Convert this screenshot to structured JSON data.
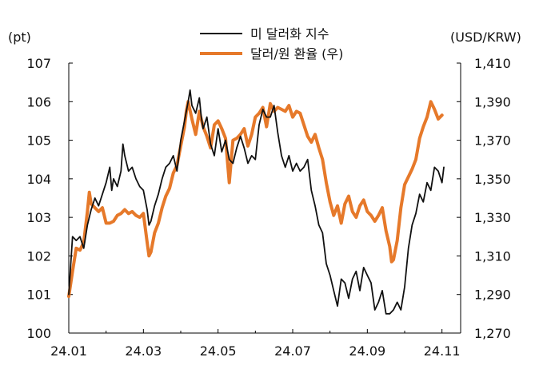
{
  "chart_data": {
    "type": "line",
    "y_left_unit": "(pt)",
    "y_right_unit": "(USD/KRW)",
    "y_left_ticks": [
      "107",
      "106",
      "105",
      "104",
      "103",
      "102",
      "101",
      "100"
    ],
    "y_right_ticks": [
      "1,410",
      "1,390",
      "1,370",
      "1,350",
      "1,330",
      "1,310",
      "1,290",
      "1,270"
    ],
    "x_ticks": [
      "24.01",
      "24.03",
      "24.05",
      "24.07",
      "24.09",
      "24.11"
    ],
    "ylim_left": [
      100,
      107
    ],
    "ylim_right": [
      1270,
      1410
    ],
    "legend_position": "top",
    "series": [
      {
        "name": "미 달러화 지수",
        "axis": "left",
        "color": "#111111",
        "points": [
          [
            0.0,
            101.0
          ],
          [
            0.1,
            102.5
          ],
          [
            0.2,
            102.4
          ],
          [
            0.3,
            102.5
          ],
          [
            0.4,
            102.2
          ],
          [
            0.5,
            102.8
          ],
          [
            0.6,
            103.2
          ],
          [
            0.7,
            103.5
          ],
          [
            0.8,
            103.3
          ],
          [
            0.9,
            103.6
          ],
          [
            1.0,
            103.9
          ],
          [
            1.1,
            104.3
          ],
          [
            1.15,
            103.7
          ],
          [
            1.2,
            104.0
          ],
          [
            1.3,
            103.8
          ],
          [
            1.4,
            104.2
          ],
          [
            1.45,
            104.9
          ],
          [
            1.5,
            104.6
          ],
          [
            1.6,
            104.2
          ],
          [
            1.7,
            104.3
          ],
          [
            1.8,
            104.0
          ],
          [
            1.9,
            103.8
          ],
          [
            2.0,
            103.7
          ],
          [
            2.1,
            103.2
          ],
          [
            2.15,
            102.8
          ],
          [
            2.2,
            102.9
          ],
          [
            2.3,
            103.3
          ],
          [
            2.4,
            103.6
          ],
          [
            2.5,
            104.0
          ],
          [
            2.6,
            104.3
          ],
          [
            2.7,
            104.4
          ],
          [
            2.8,
            104.6
          ],
          [
            2.9,
            104.2
          ],
          [
            3.0,
            105.0
          ],
          [
            3.1,
            105.5
          ],
          [
            3.2,
            106.0
          ],
          [
            3.25,
            106.3
          ],
          [
            3.3,
            105.9
          ],
          [
            3.4,
            105.7
          ],
          [
            3.5,
            106.1
          ],
          [
            3.55,
            105.6
          ],
          [
            3.6,
            105.3
          ],
          [
            3.7,
            105.6
          ],
          [
            3.8,
            104.9
          ],
          [
            3.9,
            104.6
          ],
          [
            4.0,
            105.3
          ],
          [
            4.1,
            104.7
          ],
          [
            4.2,
            105.0
          ],
          [
            4.3,
            104.5
          ],
          [
            4.4,
            104.4
          ],
          [
            4.5,
            104.8
          ],
          [
            4.6,
            105.1
          ],
          [
            4.7,
            104.8
          ],
          [
            4.8,
            104.4
          ],
          [
            4.9,
            104.6
          ],
          [
            5.0,
            104.5
          ],
          [
            5.1,
            105.4
          ],
          [
            5.2,
            105.8
          ],
          [
            5.3,
            105.6
          ],
          [
            5.4,
            105.6
          ],
          [
            5.5,
            105.9
          ],
          [
            5.6,
            105.2
          ],
          [
            5.7,
            104.6
          ],
          [
            5.8,
            104.3
          ],
          [
            5.9,
            104.6
          ],
          [
            6.0,
            104.2
          ],
          [
            6.1,
            104.4
          ],
          [
            6.2,
            104.2
          ],
          [
            6.3,
            104.3
          ],
          [
            6.4,
            104.5
          ],
          [
            6.5,
            103.7
          ],
          [
            6.6,
            103.3
          ],
          [
            6.7,
            102.8
          ],
          [
            6.8,
            102.6
          ],
          [
            6.9,
            101.8
          ],
          [
            7.0,
            101.5
          ],
          [
            7.1,
            101.1
          ],
          [
            7.2,
            100.7
          ],
          [
            7.3,
            101.4
          ],
          [
            7.4,
            101.3
          ],
          [
            7.5,
            100.9
          ],
          [
            7.6,
            101.4
          ],
          [
            7.7,
            101.6
          ],
          [
            7.8,
            101.1
          ],
          [
            7.9,
            101.7
          ],
          [
            8.0,
            101.5
          ],
          [
            8.1,
            101.3
          ],
          [
            8.2,
            100.6
          ],
          [
            8.3,
            100.8
          ],
          [
            8.4,
            101.1
          ],
          [
            8.5,
            100.5
          ],
          [
            8.6,
            100.5
          ],
          [
            8.7,
            100.6
          ],
          [
            8.8,
            100.8
          ],
          [
            8.9,
            100.6
          ],
          [
            9.0,
            101.2
          ],
          [
            9.1,
            102.2
          ],
          [
            9.2,
            102.8
          ],
          [
            9.3,
            103.1
          ],
          [
            9.4,
            103.6
          ],
          [
            9.5,
            103.4
          ],
          [
            9.6,
            103.9
          ],
          [
            9.7,
            103.7
          ],
          [
            9.8,
            104.3
          ],
          [
            9.9,
            104.2
          ],
          [
            10.0,
            103.9
          ],
          [
            10.05,
            104.3
          ]
        ]
      },
      {
        "name": "달러/원 환율 (우)",
        "axis": "right",
        "color": "#E6792A",
        "points": [
          [
            0.0,
            1289
          ],
          [
            0.1,
            1302
          ],
          [
            0.2,
            1314
          ],
          [
            0.3,
            1313
          ],
          [
            0.4,
            1317
          ],
          [
            0.5,
            1333
          ],
          [
            0.55,
            1343
          ],
          [
            0.6,
            1337
          ],
          [
            0.7,
            1335
          ],
          [
            0.8,
            1333
          ],
          [
            0.9,
            1335
          ],
          [
            1.0,
            1327
          ],
          [
            1.1,
            1327
          ],
          [
            1.2,
            1328
          ],
          [
            1.3,
            1331
          ],
          [
            1.4,
            1332
          ],
          [
            1.5,
            1334
          ],
          [
            1.6,
            1332
          ],
          [
            1.7,
            1333
          ],
          [
            1.8,
            1331
          ],
          [
            1.9,
            1330
          ],
          [
            2.0,
            1332
          ],
          [
            2.1,
            1317
          ],
          [
            2.15,
            1310
          ],
          [
            2.2,
            1312
          ],
          [
            2.3,
            1322
          ],
          [
            2.4,
            1327
          ],
          [
            2.5,
            1335
          ],
          [
            2.6,
            1341
          ],
          [
            2.7,
            1345
          ],
          [
            2.8,
            1353
          ],
          [
            2.9,
            1357
          ],
          [
            3.0,
            1367
          ],
          [
            3.1,
            1377
          ],
          [
            3.15,
            1385
          ],
          [
            3.2,
            1390
          ],
          [
            3.3,
            1381
          ],
          [
            3.4,
            1373
          ],
          [
            3.5,
            1385
          ],
          [
            3.6,
            1377
          ],
          [
            3.7,
            1372
          ],
          [
            3.8,
            1366
          ],
          [
            3.9,
            1378
          ],
          [
            4.0,
            1380
          ],
          [
            4.1,
            1376
          ],
          [
            4.2,
            1371
          ],
          [
            4.3,
            1348
          ],
          [
            4.4,
            1370
          ],
          [
            4.5,
            1371
          ],
          [
            4.6,
            1373
          ],
          [
            4.7,
            1376
          ],
          [
            4.8,
            1367
          ],
          [
            4.9,
            1373
          ],
          [
            5.0,
            1382
          ],
          [
            5.1,
            1384
          ],
          [
            5.2,
            1387
          ],
          [
            5.3,
            1377
          ],
          [
            5.4,
            1389
          ],
          [
            5.5,
            1385
          ],
          [
            5.6,
            1387
          ],
          [
            5.7,
            1386
          ],
          [
            5.8,
            1385
          ],
          [
            5.9,
            1388
          ],
          [
            6.0,
            1382
          ],
          [
            6.1,
            1385
          ],
          [
            6.2,
            1384
          ],
          [
            6.3,
            1378
          ],
          [
            6.4,
            1372
          ],
          [
            6.5,
            1369
          ],
          [
            6.6,
            1373
          ],
          [
            6.7,
            1366
          ],
          [
            6.8,
            1360
          ],
          [
            6.9,
            1348
          ],
          [
            7.0,
            1338
          ],
          [
            7.1,
            1331
          ],
          [
            7.2,
            1336
          ],
          [
            7.3,
            1327
          ],
          [
            7.4,
            1337
          ],
          [
            7.5,
            1341
          ],
          [
            7.6,
            1333
          ],
          [
            7.7,
            1330
          ],
          [
            7.8,
            1336
          ],
          [
            7.9,
            1339
          ],
          [
            8.0,
            1333
          ],
          [
            8.1,
            1331
          ],
          [
            8.2,
            1328
          ],
          [
            8.3,
            1331
          ],
          [
            8.4,
            1335
          ],
          [
            8.5,
            1323
          ],
          [
            8.6,
            1315
          ],
          [
            8.65,
            1307
          ],
          [
            8.7,
            1308
          ],
          [
            8.8,
            1318
          ],
          [
            8.9,
            1335
          ],
          [
            9.0,
            1347
          ],
          [
            9.1,
            1351
          ],
          [
            9.2,
            1355
          ],
          [
            9.3,
            1360
          ],
          [
            9.4,
            1371
          ],
          [
            9.5,
            1377
          ],
          [
            9.6,
            1382
          ],
          [
            9.7,
            1390
          ],
          [
            9.8,
            1386
          ],
          [
            9.9,
            1381
          ],
          [
            10.0,
            1383
          ]
        ]
      }
    ]
  }
}
